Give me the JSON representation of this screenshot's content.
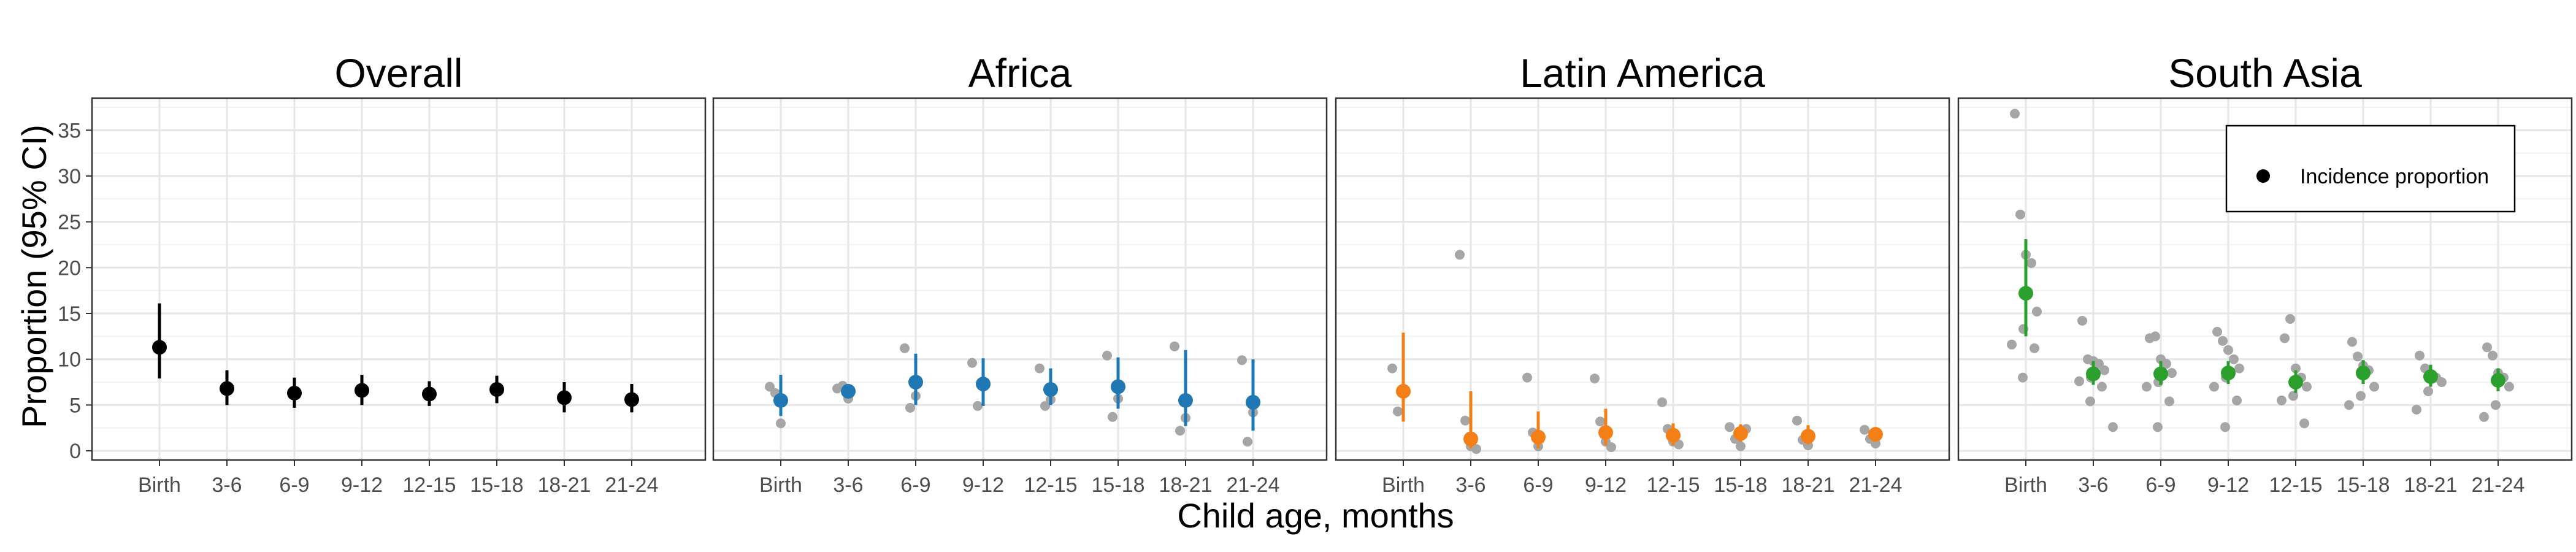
{
  "y_axis_title": "Proportion (95% CI)",
  "x_axis_title": "Child age, months",
  "legend": {
    "label": "Incidence proportion",
    "marker_color": "#000000"
  },
  "chart_data": {
    "type": "scatter",
    "y_ticks": [
      0,
      5,
      10,
      15,
      20,
      25,
      30,
      35
    ],
    "ylim": [
      -1,
      38.5
    ],
    "grid": true,
    "legend_placement": "top-right of South Asia panel",
    "categories": [
      "Birth",
      "3-6",
      "6-9",
      "9-12",
      "12-15",
      "15-18",
      "18-21",
      "21-24"
    ],
    "panels": [
      {
        "title": "Overall",
        "color": "#000000",
        "estimates": [
          11.3,
          6.8,
          6.3,
          6.6,
          6.2,
          6.7,
          5.8,
          5.6
        ],
        "ci_lower": [
          7.9,
          5.0,
          4.7,
          5.0,
          4.9,
          5.2,
          4.2,
          4.2
        ],
        "ci_upper": [
          16.1,
          8.8,
          8.0,
          8.3,
          7.6,
          8.2,
          7.5,
          7.3
        ],
        "cohorts": [
          [],
          [],
          [],
          [],
          [],
          [],
          [],
          []
        ]
      },
      {
        "title": "Africa",
        "color": "#1f78b4",
        "estimates": [
          5.5,
          6.5,
          7.5,
          7.3,
          6.7,
          7.0,
          5.5,
          5.3
        ],
        "ci_lower": [
          3.8,
          5.8,
          5.0,
          4.9,
          5.0,
          4.6,
          2.7,
          2.2
        ],
        "ci_upper": [
          8.3,
          7.3,
          10.6,
          10.1,
          9.0,
          10.2,
          11.0,
          10.0
        ],
        "cohorts": [
          [
            7.0,
            6.3,
            3.0
          ],
          [
            6.8,
            7.1,
            5.7
          ],
          [
            11.2,
            4.7,
            6.0
          ],
          [
            9.6,
            4.9,
            7.0
          ],
          [
            9.0,
            4.9,
            5.6
          ],
          [
            10.4,
            3.7,
            5.7
          ],
          [
            11.4,
            2.2,
            3.6
          ],
          [
            9.9,
            1.0,
            4.2
          ]
        ]
      },
      {
        "title": "Latin America",
        "color": "#f57f17",
        "estimates": [
          6.5,
          1.3,
          1.5,
          2.0,
          1.7,
          1.9,
          1.6,
          1.8
        ],
        "ci_lower": [
          3.2,
          0.3,
          0.3,
          0.6,
          0.6,
          1.0,
          0.7,
          1.0
        ],
        "ci_upper": [
          12.9,
          6.5,
          4.3,
          4.6,
          3.0,
          2.9,
          2.8,
          2.6
        ],
        "cohorts": [
          [
            9.0,
            4.3
          ],
          [
            21.4,
            3.3,
            0.5,
            0.2
          ],
          [
            8.0,
            2.0,
            0.5
          ],
          [
            7.9,
            3.2,
            1.0,
            0.4
          ],
          [
            5.3,
            2.4,
            1.0,
            0.7
          ],
          [
            2.6,
            1.3,
            0.5,
            2.4
          ],
          [
            3.3,
            1.2,
            0.6
          ],
          [
            2.3,
            1.3,
            0.8
          ]
        ]
      },
      {
        "title": "South Asia",
        "color": "#2ca02c",
        "estimates": [
          17.2,
          8.4,
          8.4,
          8.5,
          7.5,
          8.5,
          8.1,
          7.7
        ],
        "ci_lower": [
          12.5,
          7.2,
          7.2,
          7.3,
          6.3,
          7.3,
          7.0,
          6.5
        ],
        "ci_upper": [
          23.1,
          9.8,
          9.8,
          9.8,
          8.8,
          9.9,
          9.4,
          9.0
        ],
        "cohorts": [
          [
            36.8,
            25.8,
            21.4,
            20.5,
            15.2,
            13.3,
            11.6,
            11.2,
            8.0
          ],
          [
            14.2,
            10.0,
            9.8,
            9.5,
            8.8,
            8.0,
            7.6,
            7.0,
            5.4,
            2.6
          ],
          [
            12.3,
            12.5,
            10.0,
            9.5,
            8.5,
            7.5,
            7.0,
            5.4,
            2.6
          ],
          [
            13.0,
            12.0,
            11.0,
            10.0,
            9.0,
            8.0,
            7.0,
            5.5,
            2.6
          ],
          [
            12.3,
            14.4,
            9.0,
            8.0,
            7.0,
            6.0,
            5.5,
            3.0
          ],
          [
            11.9,
            10.3,
            9.3,
            8.8,
            7.0,
            6.0,
            5.0
          ],
          [
            10.4,
            9.0,
            8.4,
            8.0,
            7.5,
            6.5,
            4.5
          ],
          [
            11.3,
            10.4,
            8.5,
            8.0,
            7.0,
            5.0,
            3.7
          ]
        ]
      }
    ]
  }
}
